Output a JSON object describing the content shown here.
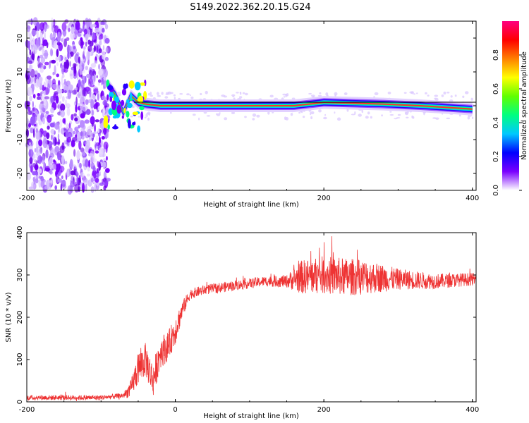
{
  "title": "S149.2022.362.20.15.G24",
  "chart_data": [
    {
      "type": "heatmap",
      "xlabel": "Height of straight line (km)",
      "ylabel": "Frequency (Hz)",
      "xlim": [
        -200,
        405
      ],
      "ylim": [
        -25,
        25
      ],
      "x_ticks": [
        "-200",
        "0",
        "200",
        "400"
      ],
      "y_ticks": [
        "-20",
        "-10",
        "0",
        "10",
        "20"
      ],
      "colorbar": {
        "label": "Normalized spectral amplitude",
        "range": [
          0,
          1
        ],
        "ticks": [
          "0.0",
          "0.2",
          "0.4",
          "0.6",
          "0.8"
        ],
        "colors": [
          "#ffffff",
          "#7a00ff",
          "#0000ff",
          "#00c8ff",
          "#00ff80",
          "#60ff00",
          "#ffff00",
          "#ff8000",
          "#ff0000",
          "#ff0080"
        ]
      },
      "description_points": {
        "noise_region_km": [
          -200,
          -90
        ],
        "signal_start_km": -95,
        "carrier_frequency_hz": 0,
        "doppler_trace": [
          {
            "x": -90,
            "y": 6
          },
          {
            "x": -80,
            "y": 3
          },
          {
            "x": -70,
            "y": -2
          },
          {
            "x": -60,
            "y": 3
          },
          {
            "x": -50,
            "y": 1
          },
          {
            "x": -40,
            "y": 0.5
          },
          {
            "x": -20,
            "y": 0
          },
          {
            "x": 100,
            "y": 0
          },
          {
            "x": 160,
            "y": 0
          },
          {
            "x": 200,
            "y": 1
          },
          {
            "x": 280,
            "y": 0.5
          },
          {
            "x": 330,
            "y": 0
          },
          {
            "x": 400,
            "y": -1
          }
        ]
      }
    },
    {
      "type": "line",
      "xlabel": "Height of straight line (km)",
      "ylabel": "SNR (10 * v/v)",
      "xlim": [
        -200,
        405
      ],
      "ylim": [
        0,
        400
      ],
      "x_ticks": [
        "-200",
        "0",
        "200",
        "400"
      ],
      "y_ticks": [
        "0",
        "100",
        "200",
        "300",
        "400"
      ],
      "color": "#ee3333",
      "series": [
        {
          "x": [
            -200,
            -150,
            -100,
            -70,
            -60,
            -50,
            -40,
            -30,
            -20,
            -10,
            0,
            10,
            20,
            40,
            60,
            80,
            100,
            120,
            150,
            170,
            200,
            230,
            260,
            300,
            350,
            400
          ],
          "y": [
            10,
            10,
            10,
            15,
            30,
            80,
            100,
            50,
            120,
            130,
            170,
            220,
            255,
            265,
            270,
            275,
            280,
            285,
            285,
            295,
            300,
            295,
            295,
            290,
            285,
            290
          ],
          "noise": [
            6,
            6,
            6,
            6,
            20,
            40,
            40,
            40,
            40,
            35,
            35,
            20,
            12,
            12,
            12,
            12,
            12,
            12,
            15,
            40,
            45,
            45,
            40,
            25,
            18,
            15
          ]
        }
      ]
    }
  ]
}
